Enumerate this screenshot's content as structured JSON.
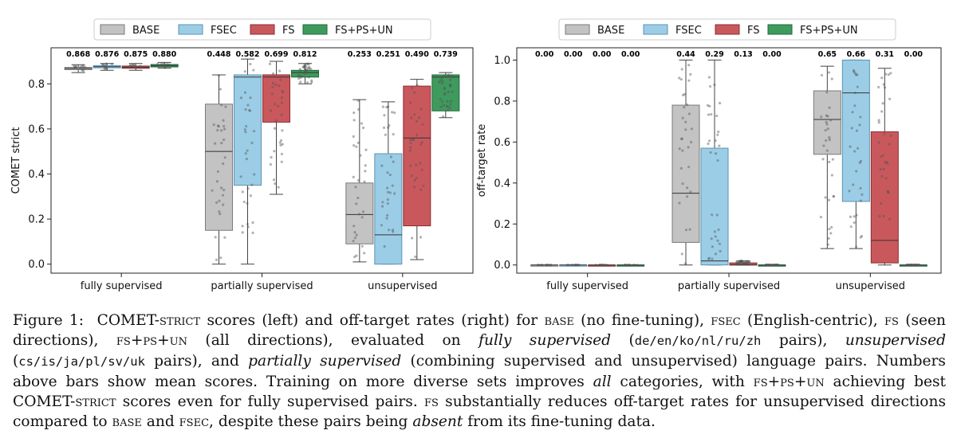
{
  "legend": [
    {
      "label": "BASE",
      "color": "#c3c3c3",
      "edge": "#7a7a7a"
    },
    {
      "label": "FSEC",
      "color": "#9ccde6",
      "edge": "#5a93b3"
    },
    {
      "label": "FS",
      "color": "#c9585d",
      "edge": "#8a2d31"
    },
    {
      "label": "FS+PS+UN",
      "color": "#3f9a5e",
      "edge": "#1f6a3a"
    }
  ],
  "chart_data": [
    {
      "type": "box",
      "panel": "left",
      "ylabel": "COMET strict",
      "ylim": [
        -0.04,
        0.96
      ],
      "yticks": [
        "0.0",
        "0.2",
        "0.4",
        "0.6",
        "0.8"
      ],
      "categories": [
        "fully supervised",
        "partially supervised",
        "unsupervised"
      ],
      "series": [
        {
          "name": "BASE",
          "means": [
            "0.868",
            "0.448",
            "0.253"
          ],
          "boxes": [
            {
              "q1": 0.863,
              "med": 0.868,
              "q3": 0.873,
              "wlo": 0.85,
              "whi": 0.885
            },
            {
              "q1": 0.15,
              "med": 0.5,
              "q3": 0.71,
              "wlo": 0.0,
              "whi": 0.84
            },
            {
              "q1": 0.09,
              "med": 0.22,
              "q3": 0.36,
              "wlo": 0.01,
              "whi": 0.73
            }
          ]
        },
        {
          "name": "FSEC",
          "means": [
            "0.876",
            "0.582",
            "0.251"
          ],
          "boxes": [
            {
              "q1": 0.871,
              "med": 0.876,
              "q3": 0.881,
              "wlo": 0.86,
              "whi": 0.89
            },
            {
              "q1": 0.35,
              "med": 0.83,
              "q3": 0.84,
              "wlo": 0.0,
              "whi": 0.91
            },
            {
              "q1": 0.0,
              "med": 0.13,
              "q3": 0.49,
              "wlo": 0.0,
              "whi": 0.72
            }
          ]
        },
        {
          "name": "FS",
          "means": [
            "0.875",
            "0.699",
            "0.490"
          ],
          "boxes": [
            {
              "q1": 0.869,
              "med": 0.874,
              "q3": 0.879,
              "wlo": 0.86,
              "whi": 0.89
            },
            {
              "q1": 0.63,
              "med": 0.83,
              "q3": 0.84,
              "wlo": 0.31,
              "whi": 0.9
            },
            {
              "q1": 0.17,
              "med": 0.56,
              "q3": 0.79,
              "wlo": 0.02,
              "whi": 0.82
            }
          ]
        },
        {
          "name": "FS+PS+UN",
          "means": [
            "0.880",
            "0.812",
            "0.739"
          ],
          "boxes": [
            {
              "q1": 0.875,
              "med": 0.88,
              "q3": 0.886,
              "wlo": 0.87,
              "whi": 0.895
            },
            {
              "q1": 0.83,
              "med": 0.85,
              "q3": 0.86,
              "wlo": 0.8,
              "whi": 0.89
            },
            {
              "q1": 0.68,
              "med": 0.83,
              "q3": 0.84,
              "wlo": 0.65,
              "whi": 0.85
            }
          ]
        }
      ]
    },
    {
      "type": "box",
      "panel": "right",
      "ylabel": "off-target rate",
      "ylim": [
        -0.04,
        1.06
      ],
      "yticks": [
        "0.0",
        "0.2",
        "0.4",
        "0.6",
        "0.8",
        "1.0"
      ],
      "categories": [
        "fully supervised",
        "partially supervised",
        "unsupervised"
      ],
      "series": [
        {
          "name": "BASE",
          "means": [
            "0.00",
            "0.44",
            "0.65"
          ],
          "boxes": [
            {
              "q1": 0.0,
              "med": 0.0,
              "q3": 0.0,
              "wlo": 0.0,
              "whi": 0.0
            },
            {
              "q1": 0.11,
              "med": 0.35,
              "q3": 0.78,
              "wlo": 0.0,
              "whi": 1.0
            },
            {
              "q1": 0.54,
              "med": 0.71,
              "q3": 0.85,
              "wlo": 0.08,
              "whi": 0.97
            }
          ]
        },
        {
          "name": "FSEC",
          "means": [
            "0.00",
            "0.29",
            "0.66"
          ],
          "boxes": [
            {
              "q1": 0.0,
              "med": 0.0,
              "q3": 0.0,
              "wlo": 0.0,
              "whi": 0.0
            },
            {
              "q1": 0.0,
              "med": 0.02,
              "q3": 0.57,
              "wlo": 0.0,
              "whi": 1.0
            },
            {
              "q1": 0.31,
              "med": 0.84,
              "q3": 1.0,
              "wlo": 0.08,
              "whi": 1.0
            }
          ]
        },
        {
          "name": "FS",
          "means": [
            "0.00",
            "0.13",
            "0.31"
          ],
          "boxes": [
            {
              "q1": 0.0,
              "med": 0.0,
              "q3": 0.0,
              "wlo": 0.0,
              "whi": 0.0
            },
            {
              "q1": 0.0,
              "med": 0.0,
              "q3": 0.01,
              "wlo": 0.0,
              "whi": 0.02
            },
            {
              "q1": 0.01,
              "med": 0.12,
              "q3": 0.65,
              "wlo": 0.0,
              "whi": 0.96
            }
          ]
        },
        {
          "name": "FS+PS+UN",
          "means": [
            "0.00",
            "0.00",
            "0.00"
          ],
          "boxes": [
            {
              "q1": 0.0,
              "med": 0.0,
              "q3": 0.0,
              "wlo": 0.0,
              "whi": 0.0
            },
            {
              "q1": 0.0,
              "med": 0.0,
              "q3": 0.0,
              "wlo": 0.0,
              "whi": 0.0
            },
            {
              "q1": 0.0,
              "med": 0.0,
              "q3": 0.0,
              "wlo": 0.0,
              "whi": 0.0
            }
          ]
        }
      ]
    }
  ],
  "caption": {
    "label": "Figure 1:",
    "comet": "COMET-",
    "strict": "strict",
    "t1": " scores (left) and off-target rates (right) for ",
    "base": "base",
    "t2": " (no fine-tuning), ",
    "fsec": "fsec",
    "t3": " (English-centric), ",
    "fs": "fs",
    "t4": " (seen directions), ",
    "fspsun": "fs+ps+un",
    "t5": " (all directions), evaluated on ",
    "i_fully": "fully supervised",
    "t6": " (",
    "pairs_sup": "de/en/ko/nl/ru/zh",
    "t7": " pairs), ",
    "i_unsup": "unsupervised",
    "t8": " (",
    "pairs_unsup": "cs/is/ja/pl/sv/uk",
    "t9": " pairs), and ",
    "i_partial": "partially supervised",
    "t10": " (combining supervised and unsupervised) language pairs. Numbers above bars show mean scores. Training on more diverse sets improves ",
    "i_all": "all",
    "t11": " categories, with ",
    "fspsun2": "fs+ps+un",
    "t12": " achieving best COMET-",
    "strict2": "strict",
    "t13": " scores even for fully supervised pairs. ",
    "fs2": "fs",
    "t14": " substantially reduces off-target rates for unsupervised directions compared to ",
    "base2": "base",
    "t15": " and ",
    "fsec2": "fsec",
    "t16": ", despite these pairs being ",
    "i_absent": "absent",
    "t17": " from its fine-tuning data."
  }
}
